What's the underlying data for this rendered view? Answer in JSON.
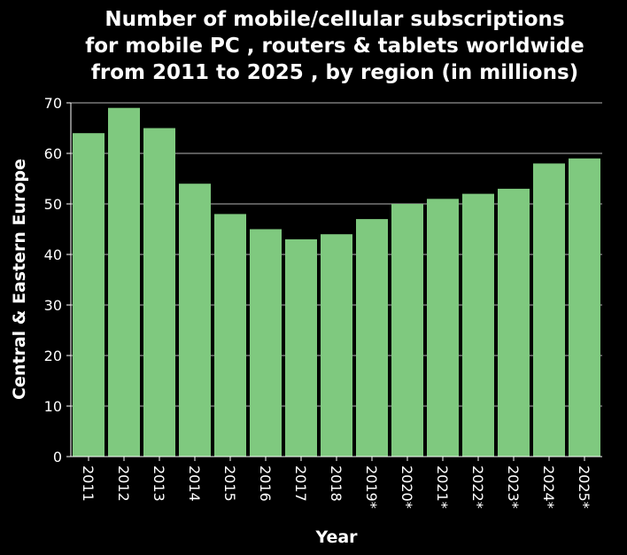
{
  "chart_data": {
    "type": "bar",
    "title_lines": [
      "Number of mobile/cellular subscriptions",
      "for mobile PC , routers & tablets worldwide",
      "from 2011 to 2025 , by region (in millions)"
    ],
    "xlabel": "Year",
    "ylabel": "Central & Eastern Europe",
    "categories": [
      "2011",
      "2012",
      "2013",
      "2014",
      "2015",
      "2016",
      "2017",
      "2018",
      "2019*",
      "2020*",
      "2021*",
      "2022*",
      "2023*",
      "2024*",
      "2025*"
    ],
    "values": [
      64,
      69,
      65,
      54,
      48,
      45,
      43,
      44,
      47,
      50,
      51,
      52,
      53,
      58,
      59
    ],
    "ylim": [
      0,
      70
    ],
    "yticks": [
      "0",
      "10",
      "20",
      "30",
      "40",
      "50",
      "60",
      "70"
    ],
    "grid": true,
    "colors": {
      "bar": "#7fc97f",
      "background": "#000000",
      "grid": "#b3b3b3",
      "text": "#ffffff"
    }
  }
}
